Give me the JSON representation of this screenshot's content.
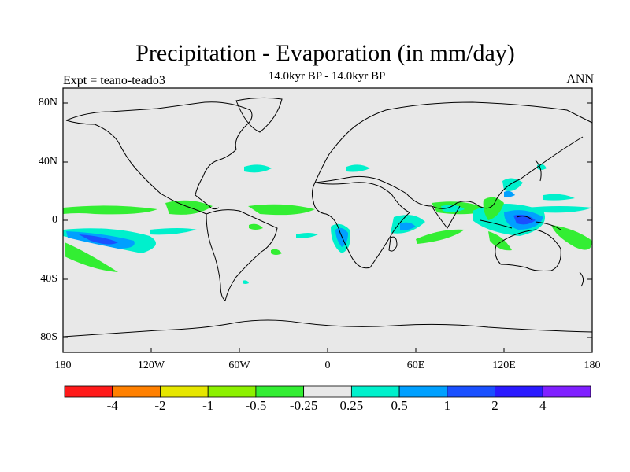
{
  "title": "Precipitation - Evaporation (in mm/day)",
  "subtitle": "14.0kyr BP - 14.0kyr BP",
  "left_label": "Expt = teano-teado3",
  "right_label": "ANN",
  "y_ticks": [
    "80N",
    "40N",
    "0",
    "40S",
    "80S"
  ],
  "x_ticks": [
    "180",
    "120W",
    "60W",
    "0",
    "60E",
    "120E",
    "180"
  ],
  "colorbar": {
    "colors": [
      "#ff1a1a",
      "#ff8000",
      "#e6e600",
      "#8cf000",
      "#33ee33",
      "#e8e8e8",
      "#00f0cc",
      "#00a0ff",
      "#1a50ff",
      "#2a1aff",
      "#8020ff"
    ],
    "labels": [
      "-4",
      "-2",
      "-1",
      "-0.5",
      "-0.25",
      "0.25",
      "0.5",
      "1",
      "2",
      "4"
    ]
  },
  "colors": {
    "ocean": "#e8e8e8",
    "green": "#33ee33",
    "cyan": "#00f0cc",
    "lightblue": "#00a0ff",
    "blue": "#1a50ff",
    "coast": "#000000"
  }
}
